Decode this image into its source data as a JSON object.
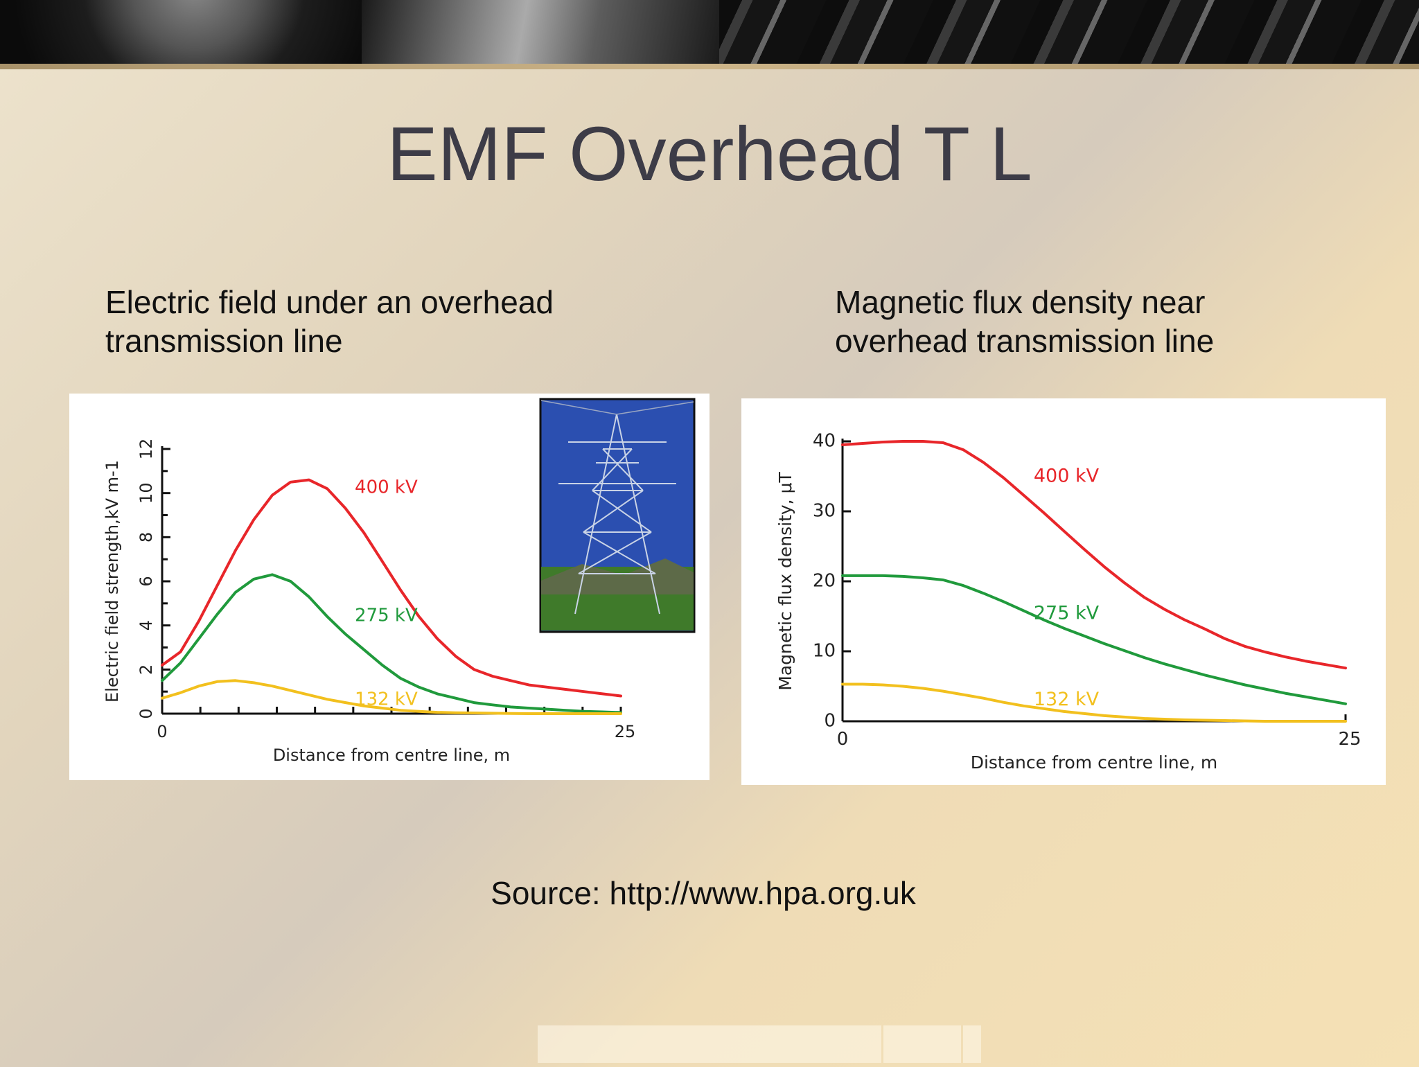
{
  "slide": {
    "title": "EMF Overhead T L",
    "source": "Source: http://www.hpa.org.uk"
  },
  "colors": {
    "400kV": "#e8262a",
    "275kV": "#209a3c",
    "132kV": "#f2c01e"
  },
  "chart_data": [
    {
      "type": "line",
      "title": "Electric field under an overhead\ntransmission line",
      "xlabel": "Distance from centre line, m",
      "ylabel": "Electric field strength,kV m-1",
      "xlim": [
        0,
        25
      ],
      "ylim": [
        0,
        12
      ],
      "xticks": [
        "0",
        "25"
      ],
      "yticks": [
        "0",
        "2",
        "4",
        "6",
        "8",
        "10",
        "12"
      ],
      "inset_image": "transmission-tower-photo",
      "series": [
        {
          "name": "400 kV",
          "color": "#e8262a",
          "x": [
            0,
            1,
            2,
            3,
            4,
            5,
            6,
            7,
            8,
            9,
            10,
            11,
            12,
            13,
            14,
            15,
            16,
            17,
            18,
            19,
            20,
            21,
            22,
            23,
            24,
            25
          ],
          "y": [
            2.2,
            2.8,
            4.2,
            5.8,
            7.4,
            8.8,
            9.9,
            10.5,
            10.6,
            10.2,
            9.3,
            8.2,
            6.9,
            5.6,
            4.4,
            3.4,
            2.6,
            2.0,
            1.7,
            1.5,
            1.3,
            1.2,
            1.1,
            1.0,
            0.9,
            0.8
          ]
        },
        {
          "name": "275 kV",
          "color": "#209a3c",
          "x": [
            0,
            1,
            2,
            3,
            4,
            5,
            6,
            7,
            8,
            9,
            10,
            11,
            12,
            13,
            14,
            15,
            16,
            17,
            18,
            19,
            20,
            21,
            22,
            23,
            24,
            25
          ],
          "y": [
            1.5,
            2.3,
            3.4,
            4.5,
            5.5,
            6.1,
            6.3,
            6.0,
            5.3,
            4.4,
            3.6,
            2.9,
            2.2,
            1.6,
            1.2,
            0.9,
            0.7,
            0.5,
            0.4,
            0.3,
            0.25,
            0.2,
            0.15,
            0.1,
            0.08,
            0.05
          ]
        },
        {
          "name": "132 kV",
          "color": "#f2c01e",
          "x": [
            0,
            1,
            2,
            3,
            4,
            5,
            6,
            7,
            8,
            9,
            10,
            11,
            12,
            13,
            14,
            15,
            16,
            17,
            18,
            19,
            20,
            21,
            22,
            23,
            24,
            25
          ],
          "y": [
            0.7,
            0.95,
            1.25,
            1.45,
            1.5,
            1.4,
            1.25,
            1.05,
            0.85,
            0.65,
            0.5,
            0.35,
            0.25,
            0.15,
            0.1,
            0.06,
            0.04,
            0.03,
            0.02,
            0.01,
            0,
            0,
            0,
            0,
            0,
            0
          ]
        }
      ]
    },
    {
      "type": "line",
      "title": "Magnetic flux density near\noverhead transmission line",
      "xlabel": "Distance from centre line, m",
      "ylabel": "Magnetic flux density, μT",
      "xlim": [
        0,
        25
      ],
      "ylim": [
        0,
        40
      ],
      "xticks": [
        "0",
        "25"
      ],
      "yticks": [
        "0",
        "10",
        "20",
        "30",
        "40"
      ],
      "series": [
        {
          "name": "400 kV",
          "color": "#e8262a",
          "x": [
            0,
            1,
            2,
            3,
            4,
            5,
            6,
            7,
            8,
            9,
            10,
            11,
            12,
            13,
            14,
            15,
            16,
            17,
            18,
            19,
            20,
            21,
            22,
            23,
            24,
            25
          ],
          "y": [
            39.5,
            39.7,
            39.9,
            40.0,
            40.0,
            39.8,
            38.8,
            37.0,
            34.8,
            32.3,
            29.8,
            27.2,
            24.6,
            22.1,
            19.8,
            17.7,
            16.0,
            14.5,
            13.2,
            11.8,
            10.7,
            9.9,
            9.2,
            8.6,
            8.1,
            7.6
          ]
        },
        {
          "name": "275 kV",
          "color": "#209a3c",
          "x": [
            0,
            1,
            2,
            3,
            4,
            5,
            6,
            7,
            8,
            9,
            10,
            11,
            12,
            13,
            14,
            15,
            16,
            17,
            18,
            19,
            20,
            21,
            22,
            23,
            24,
            25
          ],
          "y": [
            20.8,
            20.8,
            20.8,
            20.7,
            20.5,
            20.2,
            19.4,
            18.3,
            17.1,
            15.8,
            14.5,
            13.3,
            12.2,
            11.1,
            10.1,
            9.1,
            8.2,
            7.4,
            6.6,
            5.9,
            5.2,
            4.6,
            4.0,
            3.5,
            3.0,
            2.5
          ]
        },
        {
          "name": "132 kV",
          "color": "#f2c01e",
          "x": [
            0,
            1,
            2,
            3,
            4,
            5,
            6,
            7,
            8,
            9,
            10,
            11,
            12,
            13,
            14,
            15,
            16,
            17,
            18,
            19,
            20,
            21,
            22,
            23,
            24,
            25
          ],
          "y": [
            5.3,
            5.3,
            5.2,
            5.0,
            4.7,
            4.3,
            3.8,
            3.3,
            2.7,
            2.2,
            1.8,
            1.4,
            1.1,
            0.8,
            0.6,
            0.4,
            0.3,
            0.2,
            0.15,
            0.1,
            0.05,
            0,
            0,
            0,
            0,
            0
          ]
        }
      ]
    }
  ]
}
